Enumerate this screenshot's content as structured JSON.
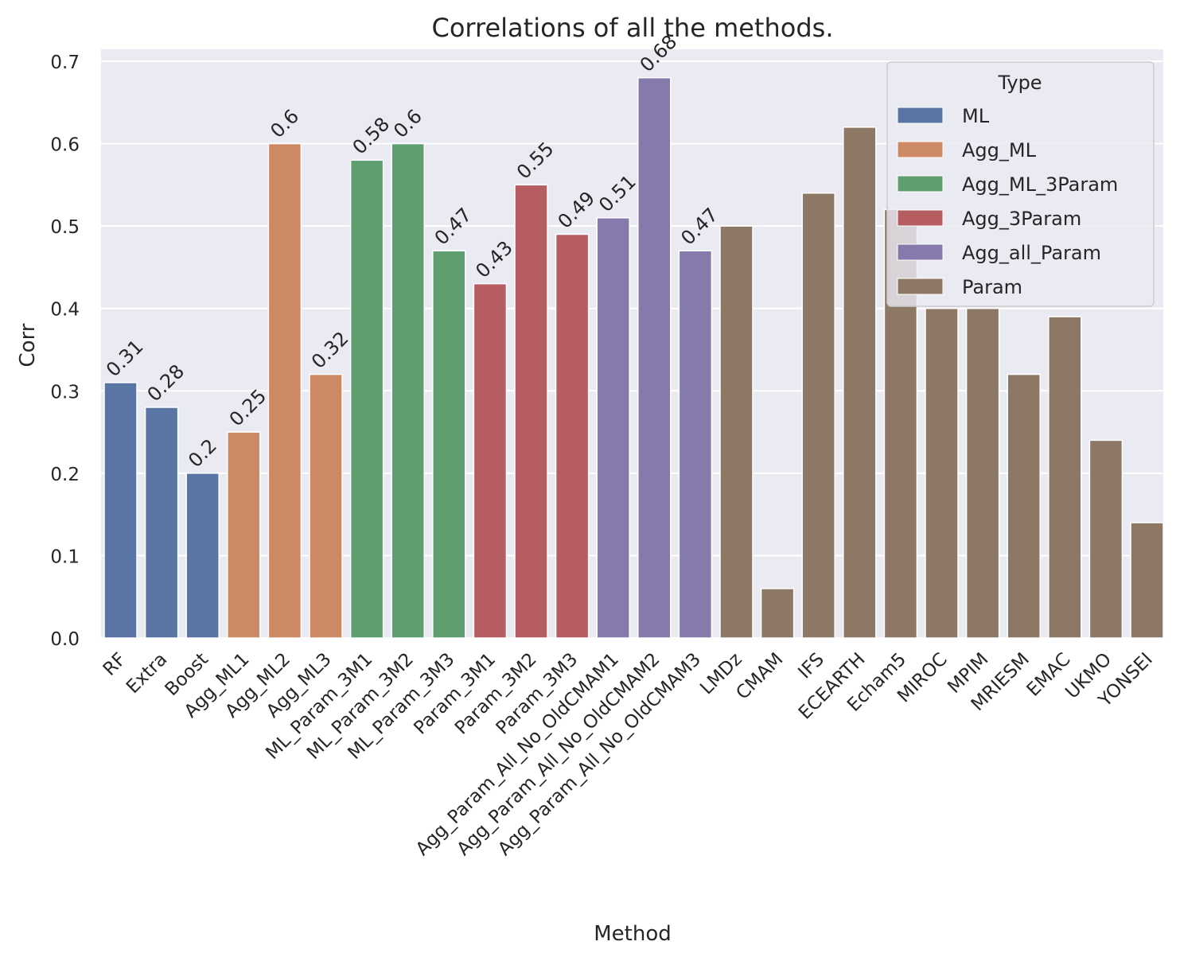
{
  "chart_data": {
    "type": "bar",
    "title": "Correlations of all the methods.",
    "xlabel": "Method",
    "ylabel": "Corr",
    "ylim": [
      0,
      0.7
    ],
    "yticks": [
      "0.0",
      "0.1",
      "0.2",
      "0.3",
      "0.4",
      "0.5",
      "0.6",
      "0.7"
    ],
    "grid": true,
    "legend": {
      "title": "Type",
      "placement": "top-right",
      "entries": [
        {
          "name": "ML",
          "color": "#5875a4"
        },
        {
          "name": "Agg_ML",
          "color": "#cc8963"
        },
        {
          "name": "Agg_ML_3Param",
          "color": "#5f9e6e"
        },
        {
          "name": "Agg_3Param",
          "color": "#b55d60"
        },
        {
          "name": "Agg_all_Param",
          "color": "#857aab"
        },
        {
          "name": "Param",
          "color": "#8d7866"
        }
      ]
    },
    "bars": [
      {
        "category": "RF",
        "value": 0.31,
        "type": "ML",
        "label": "0.31"
      },
      {
        "category": "Extra",
        "value": 0.28,
        "type": "ML",
        "label": "0.28"
      },
      {
        "category": "Boost",
        "value": 0.2,
        "type": "ML",
        "label": "0.2"
      },
      {
        "category": "Agg_ML1",
        "value": 0.25,
        "type": "Agg_ML",
        "label": "0.25"
      },
      {
        "category": "Agg_ML2",
        "value": 0.6,
        "type": "Agg_ML",
        "label": "0.6"
      },
      {
        "category": "Agg_ML3",
        "value": 0.32,
        "type": "Agg_ML",
        "label": "0.32"
      },
      {
        "category": "ML_Param_3M1",
        "value": 0.58,
        "type": "Agg_ML_3Param",
        "label": "0.58"
      },
      {
        "category": "ML_Param_3M2",
        "value": 0.6,
        "type": "Agg_ML_3Param",
        "label": "0.6"
      },
      {
        "category": "ML_Param_3M3",
        "value": 0.47,
        "type": "Agg_ML_3Param",
        "label": "0.47"
      },
      {
        "category": "Param_3M1",
        "value": 0.43,
        "type": "Agg_3Param",
        "label": "0.43"
      },
      {
        "category": "Param_3M2",
        "value": 0.55,
        "type": "Agg_3Param",
        "label": "0.55"
      },
      {
        "category": "Param_3M3",
        "value": 0.49,
        "type": "Agg_3Param",
        "label": "0.49"
      },
      {
        "category": "Agg_Param_All_No_OldCMAM1",
        "value": 0.51,
        "type": "Agg_all_Param",
        "label": "0.51"
      },
      {
        "category": "Agg_Param_All_No_OldCMAM2",
        "value": 0.68,
        "type": "Agg_all_Param",
        "label": "0.68"
      },
      {
        "category": "Agg_Param_All_No_OldCMAM3",
        "value": 0.47,
        "type": "Agg_all_Param",
        "label": "0.47"
      },
      {
        "category": "LMDz",
        "value": 0.5,
        "type": "Param"
      },
      {
        "category": "CMAM",
        "value": 0.06,
        "type": "Param"
      },
      {
        "category": "IFS",
        "value": 0.54,
        "type": "Param"
      },
      {
        "category": "ECEARTH",
        "value": 0.62,
        "type": "Param"
      },
      {
        "category": "Echam5",
        "value": 0.52,
        "type": "Param"
      },
      {
        "category": "MIROC",
        "value": 0.4,
        "type": "Param"
      },
      {
        "category": "MPIM",
        "value": 0.4,
        "type": "Param"
      },
      {
        "category": "MRIESM",
        "value": 0.32,
        "type": "Param"
      },
      {
        "category": "EMAC",
        "value": 0.39,
        "type": "Param"
      },
      {
        "category": "UKMO",
        "value": 0.24,
        "type": "Param"
      },
      {
        "category": "YONSEI",
        "value": 0.14,
        "type": "Param"
      }
    ]
  }
}
